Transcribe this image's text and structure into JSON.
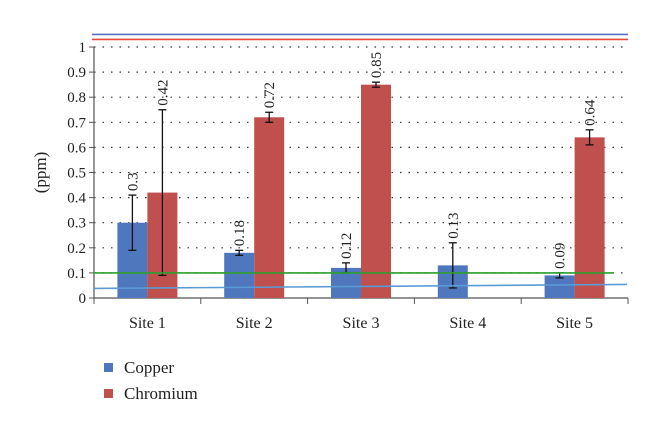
{
  "chart_data": {
    "type": "bar",
    "title": "",
    "xlabel": "",
    "ylabel": "(ppm)",
    "ylim": [
      0,
      1
    ],
    "yticks": [
      "0",
      "0.1",
      "0.2",
      "0.3",
      "0.4",
      "0.5",
      "0.6",
      "0.7",
      "0.8",
      "0.9",
      "1"
    ],
    "categories": [
      "Site 1",
      "Site 2",
      "Site 3",
      "Site 4",
      "Site 5"
    ],
    "grid": "dotted-horizontal",
    "legend_position": "bottom-left",
    "series": [
      {
        "name": "Copper",
        "color": "#4f77bd",
        "values": [
          0.3,
          0.18,
          0.12,
          0.13,
          0.09
        ],
        "labels": [
          "0.3",
          "0.18",
          "0.12",
          "0.13",
          "0.09"
        ],
        "error_low": [
          0.19,
          0.17,
          0.1,
          0.04,
          0.08
        ],
        "error_high": [
          0.41,
          0.19,
          0.14,
          0.22,
          0.1
        ]
      },
      {
        "name": "Chromium",
        "color": "#c0504d",
        "values": [
          0.42,
          0.72,
          0.85,
          null,
          0.64
        ],
        "labels": [
          "0.42",
          "0.72",
          "0.85",
          "",
          "0.64"
        ],
        "error_low": [
          0.09,
          0.7,
          0.84,
          null,
          0.61
        ],
        "error_high": [
          0.75,
          0.74,
          0.86,
          null,
          0.67
        ]
      }
    ],
    "reference_lines": [
      {
        "value": 0.05,
        "color": "#5b9bd5",
        "slope": "slight"
      },
      {
        "value": 0.1,
        "color": "#2ca02c"
      },
      {
        "value": 1.03,
        "color": "#e8473c"
      },
      {
        "value": 1.05,
        "color": "#5470c4"
      }
    ]
  }
}
